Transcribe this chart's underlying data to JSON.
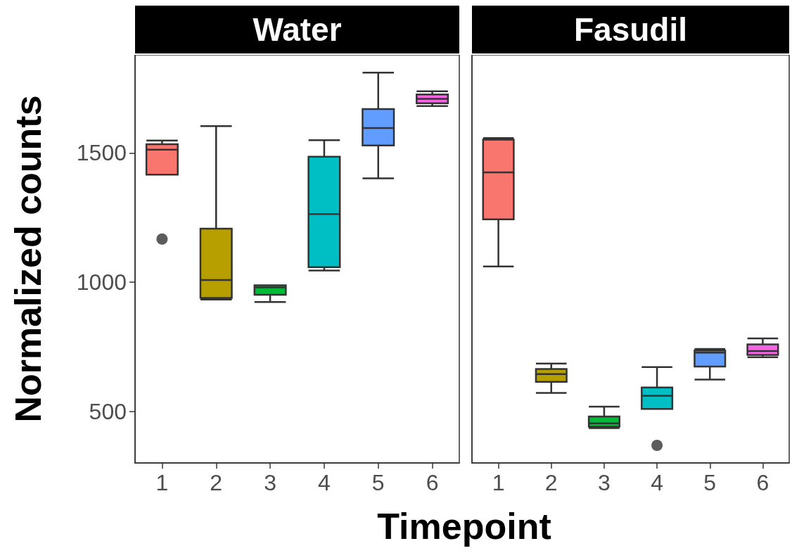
{
  "chart_data": [
    {
      "type": "box",
      "title": "Water",
      "xlabel": "Timepoint",
      "ylabel": "Normalized counts",
      "categories": [
        "1",
        "2",
        "3",
        "4",
        "5",
        "6"
      ],
      "colors": [
        "#f8766d",
        "#b79f00",
        "#00ba38",
        "#00bfc4",
        "#619cff",
        "#f564e3"
      ],
      "boxes": [
        {
          "low": 1416,
          "q1": 1416,
          "median": 1513,
          "q3": 1534,
          "high": 1548,
          "outliers": [
            1167
          ]
        },
        {
          "low": 933,
          "q1": 939,
          "median": 1008,
          "q3": 1207,
          "high": 1604
        },
        {
          "low": 923,
          "q1": 951,
          "median": 980,
          "q3": 988,
          "high": 988
        },
        {
          "low": 1045,
          "q1": 1058,
          "median": 1264,
          "q3": 1486,
          "high": 1550
        },
        {
          "low": 1402,
          "q1": 1529,
          "median": 1597,
          "q3": 1670,
          "high": 1811
        },
        {
          "low": 1682,
          "q1": 1693,
          "median": 1710,
          "q3": 1727,
          "high": 1739
        }
      ],
      "ylim": [
        300,
        1880
      ],
      "yticks": [
        500,
        1000,
        1500
      ],
      "grid": false
    },
    {
      "type": "box",
      "title": "Fasudil",
      "categories": [
        "1",
        "2",
        "3",
        "4",
        "5",
        "6"
      ],
      "colors": [
        "#f8766d",
        "#b79f00",
        "#00ba38",
        "#00bfc4",
        "#619cff",
        "#f564e3"
      ],
      "boxes": [
        {
          "low": 1061,
          "q1": 1243,
          "median": 1425,
          "q3": 1552,
          "high": 1558
        },
        {
          "low": 571,
          "q1": 614,
          "median": 644,
          "q3": 664,
          "high": 685
        },
        {
          "low": 435,
          "q1": 440,
          "median": 453,
          "q3": 480,
          "high": 518
        },
        {
          "low": 509,
          "q1": 509,
          "median": 560,
          "q3": 592,
          "high": 671,
          "outliers": [
            368
          ]
        },
        {
          "low": 623,
          "q1": 673,
          "median": 727,
          "q3": 735,
          "high": 741
        },
        {
          "low": 709,
          "q1": 718,
          "median": 733,
          "q3": 759,
          "high": 782
        }
      ],
      "ylim": [
        300,
        1880
      ],
      "yticks": [
        500,
        1000,
        1500
      ],
      "tick_labels": "x",
      "grid": false
    }
  ]
}
